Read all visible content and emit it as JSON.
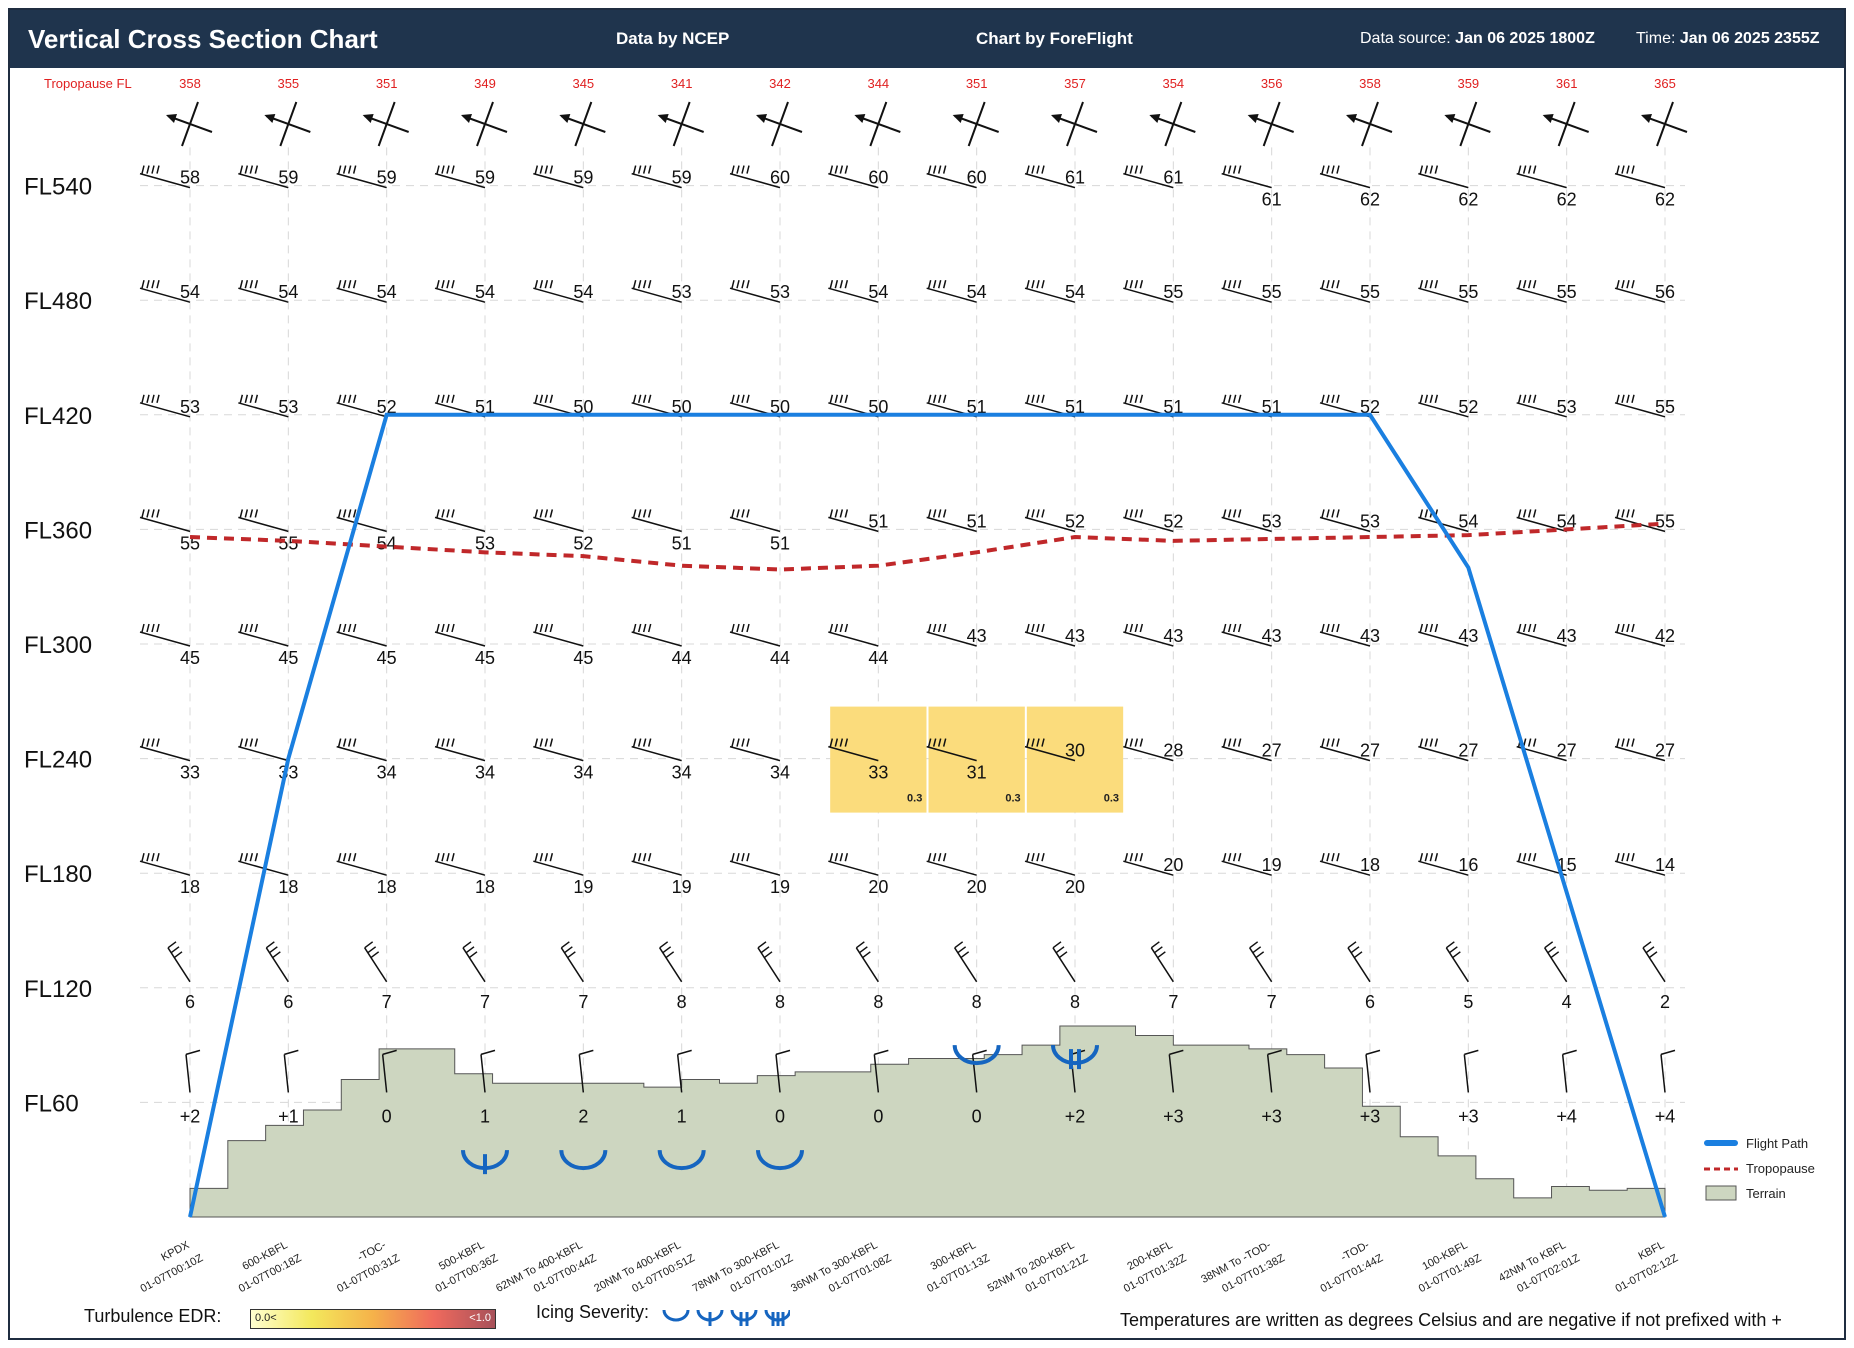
{
  "header": {
    "title": "Vertical Cross Section Chart",
    "data_by": "Data by NCEP",
    "chart_by": "Chart by ForeFlight",
    "data_source_label": "Data source:",
    "data_source_value": "Jan 06 2025 1800Z",
    "time_label": "Time:",
    "time_value": "Jan 06 2025 2355Z"
  },
  "colors": {
    "header_bg": "#1f344d",
    "flight_path": "#1a7fe0",
    "tropopause": "#c0282a",
    "terrain": "#cdd6c0",
    "icing": "#1565c0",
    "turbulence_box": "#fbdc7c",
    "tropopause_label": "#e02020"
  },
  "chart_data": {
    "type": "cross-section",
    "tropopause_label": "Tropopause FL",
    "columns": [
      "KPDX",
      "600-KBFL",
      "-TOC-",
      "500-KBFL",
      "62NM To 400-KBFL",
      "20NM To 400-KBFL",
      "78NM To 300-KBFL",
      "36NM To 300-KBFL",
      "300-KBFL",
      "52NM To 200-KBFL",
      "200-KBFL",
      "38NM To -TOD-",
      "-TOD-",
      "100-KBFL",
      "42NM To KBFL",
      "KBFL"
    ],
    "column_times": [
      "01-07T00:10Z",
      "01-07T00:18Z",
      "01-07T00:31Z",
      "01-07T00:36Z",
      "01-07T00:44Z",
      "01-07T00:51Z",
      "01-07T01:01Z",
      "01-07T01:08Z",
      "01-07T01:13Z",
      "01-07T01:21Z",
      "01-07T01:32Z",
      "01-07T01:38Z",
      "01-07T01:44Z",
      "01-07T01:49Z",
      "01-07T02:01Z",
      "01-07T02:12Z"
    ],
    "tropopause_fl": [
      358,
      355,
      351,
      349,
      345,
      341,
      342,
      344,
      351,
      357,
      354,
      356,
      358,
      359,
      361,
      365
    ],
    "levels": [
      "FL540",
      "FL480",
      "FL420",
      "FL360",
      "FL300",
      "FL240",
      "FL180",
      "FL120",
      "FL60"
    ],
    "level_values": [
      540,
      480,
      420,
      360,
      300,
      240,
      180,
      120,
      60
    ],
    "temperatures": [
      [
        "58",
        "59",
        "59",
        "59",
        "59",
        "59",
        "60",
        "60",
        "60",
        "61",
        "61",
        "61",
        "62",
        "62",
        "62",
        "62"
      ],
      [
        "54",
        "54",
        "54",
        "54",
        "54",
        "53",
        "53",
        "54",
        "54",
        "54",
        "55",
        "55",
        "55",
        "55",
        "55",
        "56"
      ],
      [
        "53",
        "53",
        "52",
        "51",
        "50",
        "50",
        "50",
        "50",
        "51",
        "51",
        "51",
        "51",
        "52",
        "52",
        "53",
        "55"
      ],
      [
        "55",
        "55",
        "54",
        "53",
        "52",
        "51",
        "51",
        "51",
        "51",
        "52",
        "52",
        "53",
        "53",
        "54",
        "54",
        "55"
      ],
      [
        "45",
        "45",
        "45",
        "45",
        "45",
        "44",
        "44",
        "44",
        "43",
        "43",
        "43",
        "43",
        "43",
        "43",
        "43",
        "42"
      ],
      [
        "33",
        "33",
        "34",
        "34",
        "34",
        "34",
        "34",
        "33",
        "31",
        "30",
        "28",
        "27",
        "27",
        "27",
        "27",
        "27"
      ],
      [
        "18",
        "18",
        "18",
        "18",
        "19",
        "19",
        "19",
        "20",
        "20",
        "20",
        "20",
        "19",
        "18",
        "16",
        "15",
        "14"
      ],
      [
        "6",
        "6",
        "7",
        "7",
        "7",
        "8",
        "8",
        "8",
        "8",
        "8",
        "7",
        "7",
        "6",
        "5",
        "4",
        "2"
      ],
      [
        "+2",
        "+1",
        "0",
        "1",
        "2",
        "1",
        "0",
        "0",
        "0",
        "+2",
        "+3",
        "+3",
        "+3",
        "+3",
        "+4",
        "+4"
      ]
    ],
    "flight_path_fl": [
      0,
      240,
      420,
      420,
      420,
      420,
      420,
      420,
      420,
      420,
      420,
      420,
      420,
      340,
      170,
      0
    ],
    "tropopause_line_fl": [
      356,
      354,
      351,
      348,
      346,
      341,
      339,
      341,
      348,
      356,
      354,
      355,
      356,
      357,
      360,
      363
    ],
    "terrain_fl": [
      15,
      40,
      48,
      56,
      72,
      88,
      88,
      75,
      70,
      70,
      70,
      70,
      68,
      72,
      70,
      74,
      76,
      76,
      80,
      83,
      83,
      85,
      90,
      100,
      100,
      95,
      90,
      90,
      88,
      85,
      78,
      58,
      42,
      32,
      20,
      10,
      16,
      14,
      15
    ],
    "turbulence_edr": [
      {
        "column": 7,
        "level": "FL240",
        "value": "0.3"
      },
      {
        "column": 8,
        "level": "FL240",
        "value": "0.3"
      },
      {
        "column": 9,
        "level": "FL240",
        "value": "0.3"
      }
    ],
    "icing": [
      {
        "column": 3,
        "severity": "light"
      },
      {
        "column": 4,
        "severity": "trace"
      },
      {
        "column": 5,
        "severity": "trace"
      },
      {
        "column": 6,
        "severity": "trace"
      },
      {
        "column": 8,
        "severity": "trace"
      },
      {
        "column": 9,
        "severity": "moderate"
      }
    ],
    "legend": {
      "flight_path": "Flight Path",
      "tropopause": "Tropopause",
      "terrain": "Terrain"
    }
  },
  "footer": {
    "turbulence_label": "Turbulence EDR:",
    "turbulence_lo": "0.0<",
    "turbulence_hi": "<1.0",
    "icing_label": "Icing Severity:",
    "note": "Temperatures are written as degrees Celsius and are negative if not prefixed with +"
  }
}
